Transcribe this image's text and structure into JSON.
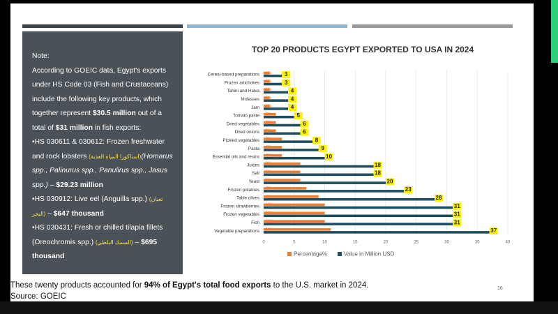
{
  "note": {
    "heading": "Note:",
    "intro": [
      "According to GOEIC data, Egypt's exports under HS Code 03 (Fish and Crustaceans) include the following key products, which together represent ",
      "$30.5 million",
      " out of a total of ",
      "$31 million",
      " in fish exports:"
    ],
    "items": [
      [
        "•HS 030611 & 030612: Frozen freshwater and rock lobsters ",
        "(استاكوزا المياه العذبة)",
        "(Homarus spp., Palinurus spp., Panulirus spp., Jasus spp.)",
        " – ",
        "$29.23 million"
      ],
      [
        "•HS 030912: Live eel (Anguilla spp.) ",
        "(ثعبان البحر)",
        " – ",
        "$647 thousand",
        ""
      ],
      [
        "•HS 030431: Fresh or chilled tilapia fillets (Oreochromis spp.) ",
        "(السمك البلطي)",
        " – ",
        "$695 thousand",
        ""
      ]
    ]
  },
  "footer": [
    "These twenty products accounted for ",
    "94% of Egypt's total food exports",
    " to the U.S. market in 2024.",
    "Source: GOEIC"
  ],
  "page_number": "16",
  "chart_data": {
    "type": "bar",
    "orientation": "horizontal",
    "title": "TOP 20 PRODUCTS EGYPT EXPORTED TO USA IN 2024",
    "categories": [
      "Cereal-based preparations",
      "Frozen artichokes",
      "Tahini and Halva",
      "Molasses",
      "Jam",
      "Tomato paste",
      "Dried vegetables",
      "Dried onions",
      "Pickled vegetables",
      "Pasta",
      "Essential oils and resins",
      "Juices",
      "Salt",
      "Yeast",
      "Frozen potatoes",
      "Table olives",
      "Frozen strawberries",
      "Frozen vegetables",
      "Fish",
      "Vegetable preparations"
    ],
    "series": [
      {
        "name": "Percentage%",
        "color": "#ed7d31",
        "values": [
          1,
          1,
          1,
          1,
          1,
          2,
          2,
          2,
          3,
          3,
          3,
          6,
          6,
          6,
          7,
          9,
          10,
          10,
          10,
          11
        ],
        "value_labels": [
          "1%",
          "1%",
          "1%",
          "1%",
          "1%",
          "2%",
          "2%",
          "2%",
          "3%",
          "3%",
          "3%",
          "6%",
          "6%",
          "6%",
          "7%",
          "9%",
          "10%",
          "10%",
          "10%",
          "11%"
        ]
      },
      {
        "name": "Value in Million USD",
        "color": "#1f4e5f",
        "values": [
          3,
          3,
          4,
          4,
          4,
          5,
          6,
          6,
          8,
          9,
          10,
          18,
          18,
          20,
          23,
          28,
          31,
          31,
          31,
          37
        ]
      }
    ],
    "xlim": [
      0,
      40
    ],
    "xticks": [
      0,
      5,
      10,
      15,
      20,
      25,
      30,
      35,
      40
    ],
    "grid": true,
    "legend": "bottom"
  }
}
